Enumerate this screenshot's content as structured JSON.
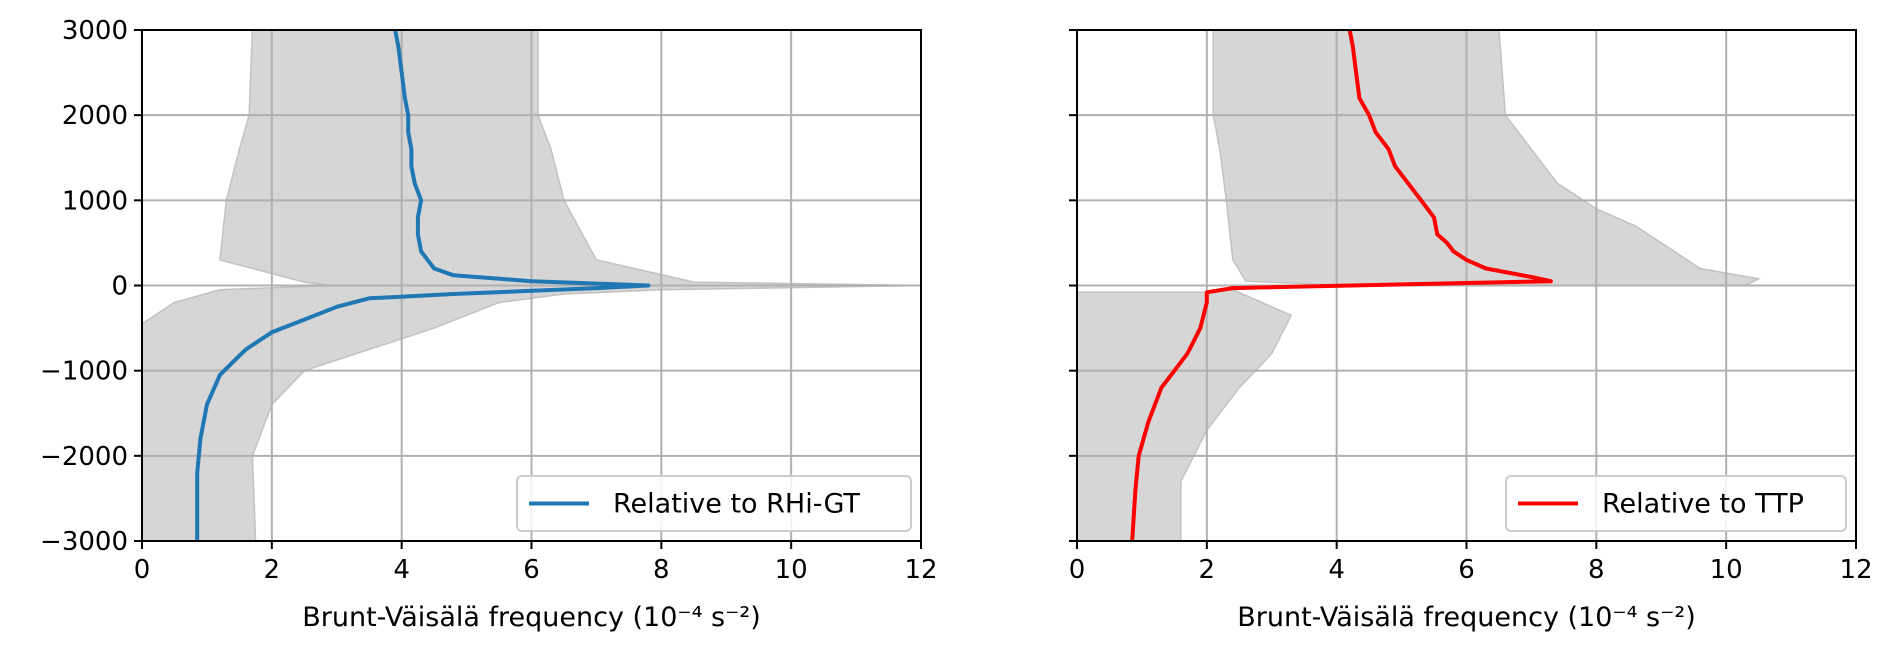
{
  "chart_data": [
    {
      "type": "line",
      "xlabel": "Brunt-Väisälä frequency (10⁻⁴ s⁻²)",
      "ylabel": "",
      "xlim": [
        0,
        12
      ],
      "ylim": [
        -3000,
        3000
      ],
      "xticks": [
        "0",
        "2",
        "4",
        "6",
        "8",
        "10",
        "12"
      ],
      "yticks": [
        "−3000",
        "−2000",
        "−1000",
        "0",
        "1000",
        "2000",
        "3000"
      ],
      "grid": true,
      "legend_position": "lower-right",
      "colors": {
        "line": "#1f77b4",
        "band": "#d6d6d6",
        "band_edge": "#c2c2c2",
        "grid": "#b0b0b0"
      },
      "series": [
        {
          "name": "Relative to RHi-GT",
          "points": [
            [
              3.9,
              3000
            ],
            [
              3.95,
              2800
            ],
            [
              4.0,
              2500
            ],
            [
              4.05,
              2200
            ],
            [
              4.1,
              2000
            ],
            [
              4.1,
              1800
            ],
            [
              4.15,
              1600
            ],
            [
              4.15,
              1400
            ],
            [
              4.2,
              1200
            ],
            [
              4.3,
              1000
            ],
            [
              4.25,
              800
            ],
            [
              4.25,
              600
            ],
            [
              4.3,
              400
            ],
            [
              4.5,
              200
            ],
            [
              4.8,
              120
            ],
            [
              6.0,
              50
            ],
            [
              7.8,
              0
            ],
            [
              7.0,
              -30
            ],
            [
              4.8,
              -100
            ],
            [
              3.5,
              -150
            ],
            [
              3.0,
              -250
            ],
            [
              2.5,
              -400
            ],
            [
              2.0,
              -550
            ],
            [
              1.6,
              -750
            ],
            [
              1.4,
              -900
            ],
            [
              1.2,
              -1050
            ],
            [
              1.0,
              -1400
            ],
            [
              0.9,
              -1800
            ],
            [
              0.85,
              -2200
            ],
            [
              0.85,
              -2600
            ],
            [
              0.85,
              -3000
            ]
          ],
          "band_lower": [
            [
              1.7,
              3000
            ],
            [
              1.65,
              2000
            ],
            [
              1.5,
              1600
            ],
            [
              1.3,
              1000
            ],
            [
              1.2,
              300
            ],
            [
              2.5,
              40
            ],
            [
              2.9,
              0
            ],
            [
              1.2,
              -50
            ],
            [
              0.5,
              -200
            ],
            [
              0.0,
              -450
            ],
            [
              0.0,
              -3000
            ]
          ],
          "band_upper": [
            [
              6.1,
              3000
            ],
            [
              6.1,
              2000
            ],
            [
              6.3,
              1600
            ],
            [
              6.5,
              1000
            ],
            [
              7.0,
              300
            ],
            [
              8.5,
              40
            ],
            [
              12.0,
              0
            ],
            [
              8.0,
              -50
            ],
            [
              6.5,
              -100
            ],
            [
              5.5,
              -200
            ],
            [
              4.5,
              -500
            ],
            [
              3.5,
              -750
            ],
            [
              2.5,
              -1000
            ],
            [
              2.0,
              -1400
            ],
            [
              1.7,
              -2000
            ],
            [
              1.75,
              -3000
            ]
          ]
        }
      ]
    },
    {
      "type": "line",
      "xlabel": "Brunt-Väisälä frequency (10⁻⁴ s⁻²)",
      "ylabel": "",
      "xlim": [
        0,
        12
      ],
      "ylim": [
        -3000,
        3000
      ],
      "xticks": [
        "0",
        "2",
        "4",
        "6",
        "8",
        "10",
        "12"
      ],
      "yticks": [],
      "grid": true,
      "legend_position": "lower-right",
      "colors": {
        "line": "#ff0000",
        "band": "#d6d6d6",
        "band_edge": "#c2c2c2",
        "grid": "#b0b0b0"
      },
      "series": [
        {
          "name": "Relative to TTP",
          "points": [
            [
              4.2,
              3000
            ],
            [
              4.25,
              2800
            ],
            [
              4.3,
              2500
            ],
            [
              4.35,
              2200
            ],
            [
              4.5,
              2000
            ],
            [
              4.6,
              1800
            ],
            [
              4.8,
              1600
            ],
            [
              4.9,
              1400
            ],
            [
              5.1,
              1200
            ],
            [
              5.3,
              1000
            ],
            [
              5.5,
              800
            ],
            [
              5.55,
              600
            ],
            [
              5.7,
              500
            ],
            [
              5.8,
              400
            ],
            [
              6.0,
              300
            ],
            [
              6.3,
              200
            ],
            [
              7.0,
              100
            ],
            [
              7.3,
              50
            ],
            [
              2.4,
              -30
            ],
            [
              2.0,
              -80
            ],
            [
              2.0,
              -200
            ],
            [
              1.9,
              -500
            ],
            [
              1.7,
              -800
            ],
            [
              1.5,
              -1000
            ],
            [
              1.3,
              -1200
            ],
            [
              1.1,
              -1600
            ],
            [
              0.95,
              -2000
            ],
            [
              0.9,
              -2400
            ],
            [
              0.85,
              -3000
            ]
          ],
          "band_lower": [
            [
              2.1,
              3000
            ],
            [
              2.1,
              2000
            ],
            [
              2.2,
              1600
            ],
            [
              2.3,
              1000
            ],
            [
              2.4,
              300
            ],
            [
              2.6,
              50
            ],
            [
              4.2,
              0
            ]
          ],
          "band_upper": [
            [
              6.5,
              3000
            ],
            [
              6.6,
              2000
            ],
            [
              7.0,
              1600
            ],
            [
              7.4,
              1200
            ],
            [
              8.0,
              900
            ],
            [
              8.6,
              700
            ],
            [
              9.0,
              500
            ],
            [
              9.6,
              200
            ],
            [
              10.5,
              80
            ],
            [
              10.3,
              0
            ]
          ],
          "band2_upper": [
            [
              2.0,
              -80
            ],
            [
              2.4,
              -50
            ],
            [
              3.3,
              -350
            ],
            [
              3.0,
              -800
            ],
            [
              2.5,
              -1200
            ],
            [
              2.0,
              -1700
            ],
            [
              1.6,
              -2300
            ],
            [
              1.6,
              -3000
            ]
          ]
        }
      ]
    }
  ]
}
